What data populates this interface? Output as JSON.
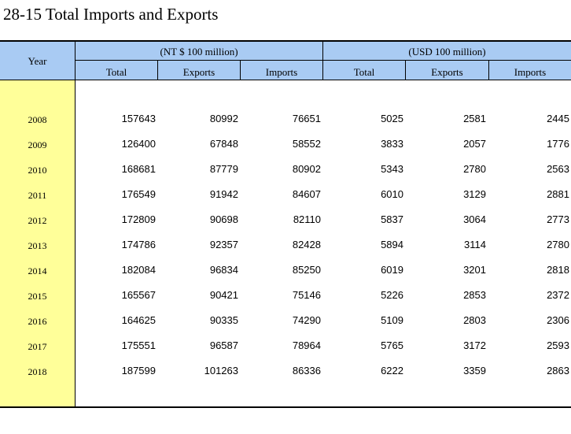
{
  "title": "28-15  Total Imports and Exports",
  "header": {
    "year": "Year",
    "group_ntd": "(NT $ 100 million)",
    "group_usd": "(USD 100 million)",
    "ntd_cols": [
      "Total",
      "Exports",
      "Imports"
    ],
    "usd_cols": [
      "Total",
      "Exports",
      "Imports"
    ]
  },
  "rows": [
    {
      "year": "2008",
      "ntd_total": "157643",
      "ntd_exports": "80992",
      "ntd_imports": "76651",
      "usd_total": "5025",
      "usd_exports": "2581",
      "usd_imports": "2445"
    },
    {
      "year": "2009",
      "ntd_total": "126400",
      "ntd_exports": "67848",
      "ntd_imports": "58552",
      "usd_total": "3833",
      "usd_exports": "2057",
      "usd_imports": "1776"
    },
    {
      "year": "2010",
      "ntd_total": "168681",
      "ntd_exports": "87779",
      "ntd_imports": "80902",
      "usd_total": "5343",
      "usd_exports": "2780",
      "usd_imports": "2563"
    },
    {
      "year": "2011",
      "ntd_total": "176549",
      "ntd_exports": "91942",
      "ntd_imports": "84607",
      "usd_total": "6010",
      "usd_exports": "3129",
      "usd_imports": "2881"
    },
    {
      "year": "2012",
      "ntd_total": "172809",
      "ntd_exports": "90698",
      "ntd_imports": "82110",
      "usd_total": "5837",
      "usd_exports": "3064",
      "usd_imports": "2773"
    },
    {
      "year": "2013",
      "ntd_total": "174786",
      "ntd_exports": "92357",
      "ntd_imports": "82428",
      "usd_total": "5894",
      "usd_exports": "3114",
      "usd_imports": "2780"
    },
    {
      "year": "2014",
      "ntd_total": "182084",
      "ntd_exports": "96834",
      "ntd_imports": "85250",
      "usd_total": "6019",
      "usd_exports": "3201",
      "usd_imports": "2818"
    },
    {
      "year": "2015",
      "ntd_total": "165567",
      "ntd_exports": "90421",
      "ntd_imports": "75146",
      "usd_total": "5226",
      "usd_exports": "2853",
      "usd_imports": "2372"
    },
    {
      "year": "2016",
      "ntd_total": "164625",
      "ntd_exports": "90335",
      "ntd_imports": "74290",
      "usd_total": "5109",
      "usd_exports": "2803",
      "usd_imports": "2306"
    },
    {
      "year": "2017",
      "ntd_total": "175551",
      "ntd_exports": "96587",
      "ntd_imports": "78964",
      "usd_total": "5765",
      "usd_exports": "3172",
      "usd_imports": "2593"
    },
    {
      "year": "2018",
      "ntd_total": "187599",
      "ntd_exports": "101263",
      "ntd_imports": "86336",
      "usd_total": "6222",
      "usd_exports": "3359",
      "usd_imports": "2863"
    }
  ],
  "colors": {
    "header_bg": "#a9cbf3",
    "year_column_bg": "#ffff99"
  }
}
